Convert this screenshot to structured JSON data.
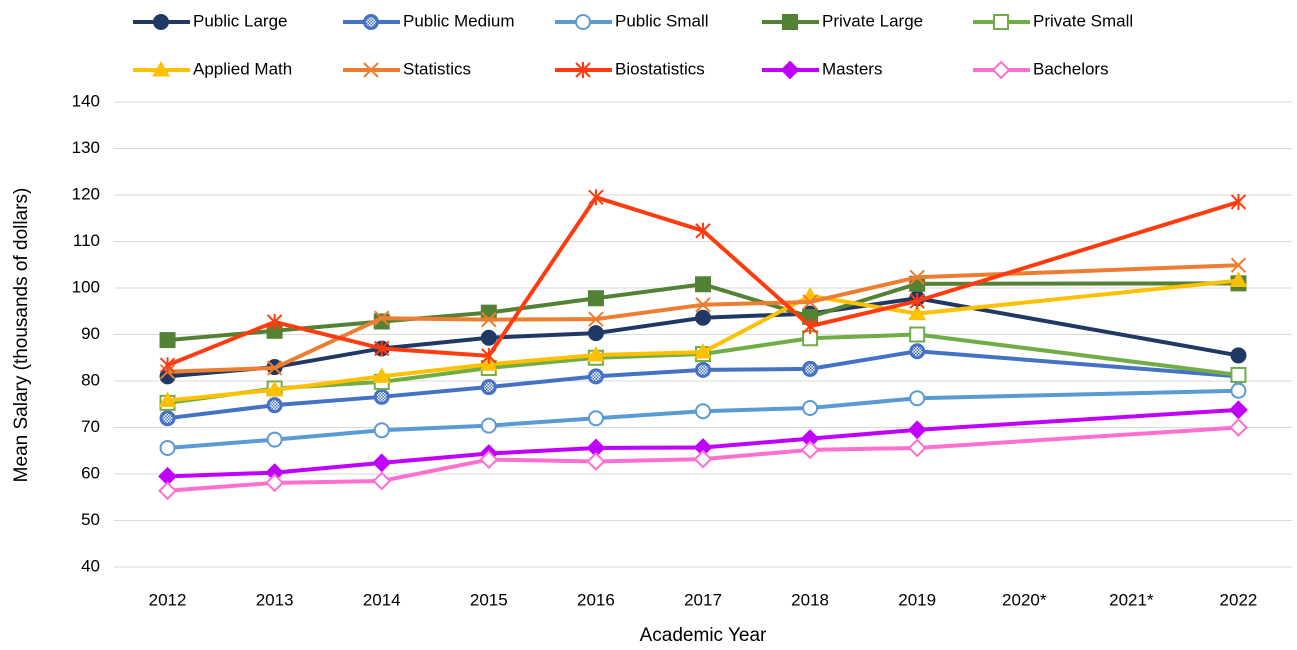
{
  "chart_data": {
    "type": "line",
    "x_label": "Academic Year",
    "y_label": "Mean Salary (thousands of dollars)",
    "categories": [
      "2012",
      "2013",
      "2014",
      "2015",
      "2016",
      "2017",
      "2018",
      "2019",
      "2020*",
      "2021*",
      "2022"
    ],
    "ylim": [
      40,
      140
    ],
    "yticks": [
      40,
      50,
      60,
      70,
      80,
      90,
      100,
      110,
      120,
      130,
      140
    ],
    "grid": true,
    "legend": "top",
    "series": [
      {
        "name": "Public Large",
        "color": "#203864",
        "marker": "circle",
        "open": false,
        "values": [
          81,
          83,
          87,
          89.3,
          90.3,
          93.6,
          94.5,
          97.8,
          null,
          null,
          85.5
        ]
      },
      {
        "name": "Public Medium",
        "color": "#4472c4",
        "marker": "circle-dotted",
        "open": false,
        "values": [
          72,
          74.8,
          76.6,
          78.7,
          81,
          82.4,
          82.6,
          86.4,
          null,
          null,
          81
        ]
      },
      {
        "name": "Public Small",
        "color": "#5b9bd5",
        "marker": "circle",
        "open": true,
        "values": [
          65.6,
          67.4,
          69.4,
          70.4,
          72,
          73.5,
          74.2,
          76.3,
          null,
          null,
          77.9
        ]
      },
      {
        "name": "Private Large",
        "color": "#548235",
        "marker": "square",
        "open": false,
        "values": [
          88.8,
          90.8,
          92.8,
          94.7,
          97.8,
          100.8,
          93.8,
          100.9,
          null,
          null,
          101
        ]
      },
      {
        "name": "Private Small",
        "color": "#70ad47",
        "marker": "square",
        "open": true,
        "values": [
          75.3,
          78.4,
          79.8,
          82.8,
          85,
          85.8,
          89.2,
          90,
          null,
          null,
          81.3
        ]
      },
      {
        "name": "Applied Math",
        "color": "#ffc000",
        "marker": "triangle",
        "open": false,
        "values": [
          75.8,
          78.1,
          81,
          83.6,
          85.6,
          86.2,
          98.3,
          94.5,
          null,
          null,
          101.6
        ]
      },
      {
        "name": "Statistics",
        "color": "#ed7d31",
        "marker": "x",
        "open": false,
        "values": [
          82,
          82.8,
          93.5,
          93.2,
          93.3,
          96.4,
          97,
          102.3,
          null,
          null,
          104.9
        ]
      },
      {
        "name": "Biostatistics",
        "color": "#ff3b0f",
        "marker": "asterisk",
        "open": false,
        "values": [
          83.4,
          92.7,
          87,
          85.4,
          119.5,
          112.3,
          91.8,
          97.2,
          null,
          null,
          118.5
        ]
      },
      {
        "name": "Masters",
        "color": "#c000ff",
        "marker": "diamond",
        "open": false,
        "values": [
          59.5,
          60.3,
          62.4,
          64.4,
          65.6,
          65.7,
          67.6,
          69.5,
          null,
          null,
          73.8
        ]
      },
      {
        "name": "Bachelors",
        "color": "#ff6fcf",
        "marker": "diamond",
        "open": true,
        "values": [
          56.4,
          58.1,
          58.5,
          63.1,
          62.7,
          63.2,
          65.2,
          65.6,
          null,
          null,
          70
        ]
      }
    ]
  }
}
